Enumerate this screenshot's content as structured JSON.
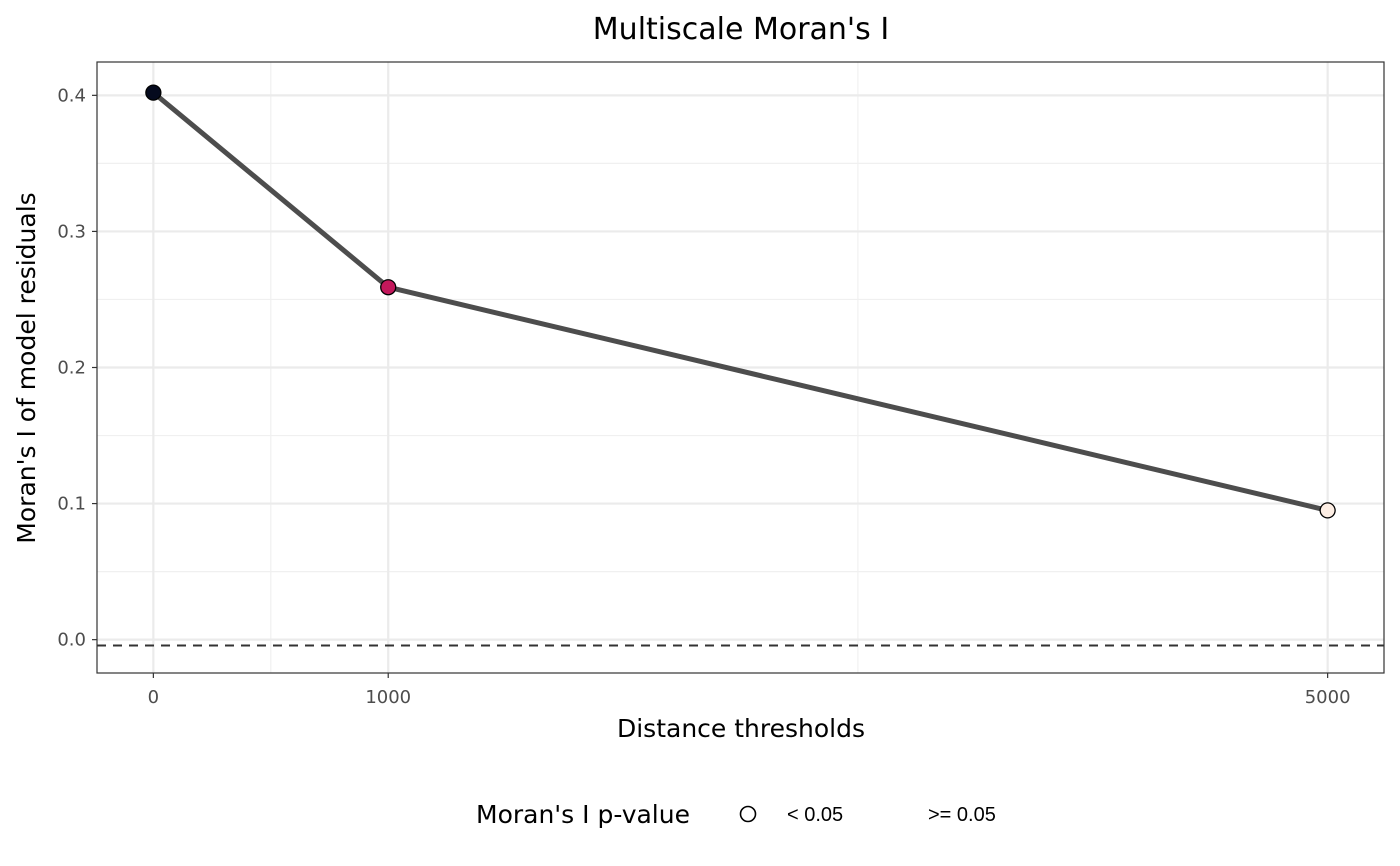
{
  "chart_data": {
    "type": "line",
    "title": "Multiscale Moran's I",
    "xlabel": "Distance thresholds",
    "ylabel": "Moran's I of model residuals",
    "x": [
      0,
      1000,
      5000
    ],
    "series": [
      {
        "values": [
          0.402,
          0.259,
          0.095
        ]
      }
    ],
    "point_colors": [
      "#050a1e",
      "#c2185b",
      "#fdeee4"
    ],
    "line_color": "#4d4d4d",
    "x_ticks": [
      0,
      1000,
      5000
    ],
    "x_tick_labels": [
      "0",
      "1000",
      "5000"
    ],
    "y_ticks": [
      0.0,
      0.1,
      0.2,
      0.3,
      0.4
    ],
    "y_tick_labels": [
      "0.0",
      "0.1",
      "0.2",
      "0.3",
      "0.4"
    ],
    "xlim": [
      -240,
      5240
    ],
    "ylim": [
      -0.0245,
      0.4245
    ],
    "reference_line": {
      "y": -0.0043,
      "style": "dashed"
    },
    "grid": true,
    "legend": {
      "title": "Moran's I p-value",
      "position": "bottom",
      "entries": [
        "< 0.05",
        ">= 0.05"
      ]
    }
  }
}
